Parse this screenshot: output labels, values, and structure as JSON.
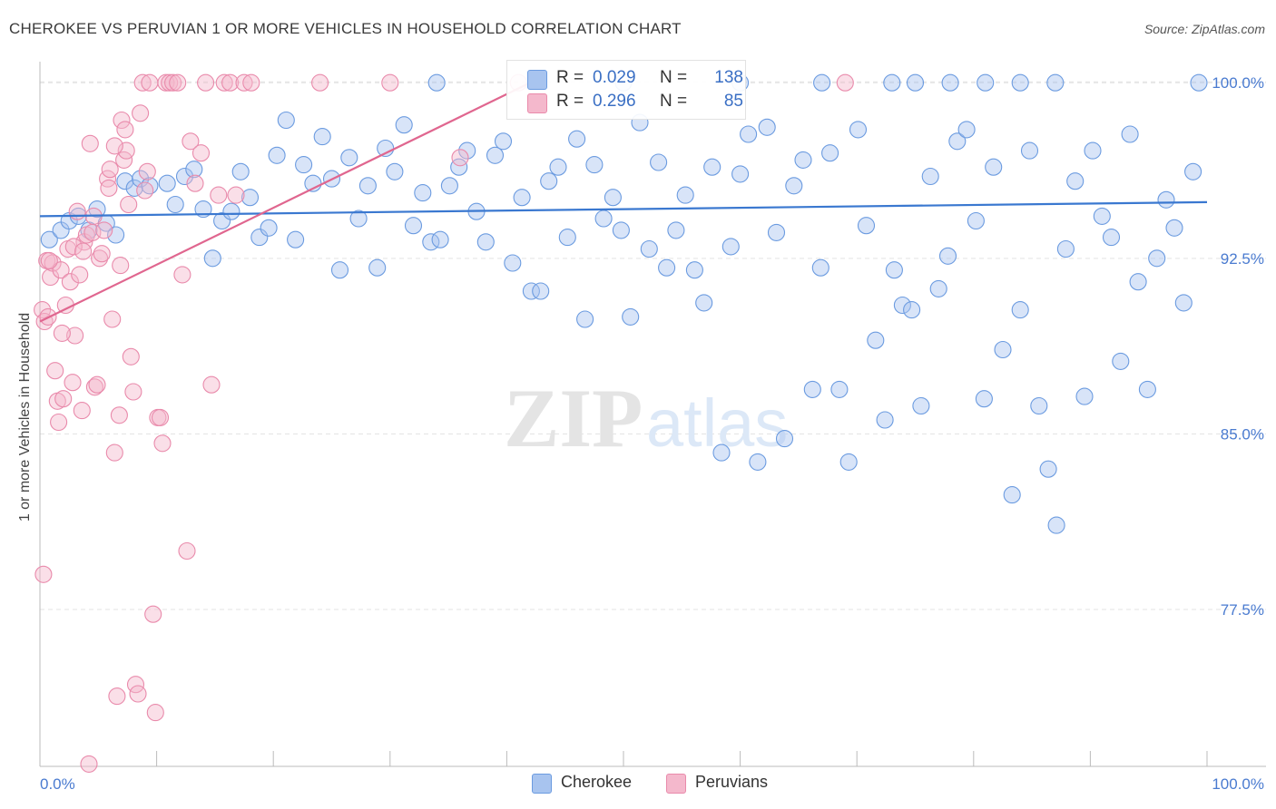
{
  "header": {
    "title": "CHEROKEE VS PERUVIAN 1 OR MORE VEHICLES IN HOUSEHOLD CORRELATION CHART",
    "source": "Source: ZipAtlas.com"
  },
  "watermark": {
    "zip": "ZIP",
    "atlas": "atlas"
  },
  "stats": [
    {
      "r_label": "R =",
      "r_value": "0.029",
      "n_label": "N =",
      "n_value": "138",
      "color": "#a8c4ef"
    },
    {
      "r_label": "R =",
      "r_value": "0.296",
      "n_label": "N =",
      "n_value": "85",
      "color": "#f4b8cc"
    }
  ],
  "legend": [
    {
      "label": "Cherokee",
      "color": "#a8c4ef"
    },
    {
      "label": "Peruvians",
      "color": "#f4b8cc"
    }
  ],
  "chart_data": {
    "type": "scatter",
    "title": "CHEROKEE VS PERUVIAN 1 OR MORE VEHICLES IN HOUSEHOLD CORRELATION CHART",
    "xlabel": "",
    "ylabel": "1 or more Vehicles in Household",
    "xlim": [
      0,
      100
    ],
    "ylim": [
      70.8,
      100.9
    ],
    "x_tick_labels": [
      "0.0%",
      "100.0%"
    ],
    "y_ticks": [
      100.0,
      92.5,
      85.0,
      77.5
    ],
    "y_tick_labels": [
      "100.0%",
      "92.5%",
      "85.0%",
      "77.5%"
    ],
    "grid": true,
    "series": [
      {
        "name": "Cherokee",
        "color": "#6b9be0",
        "fill": "#a8c4ef",
        "trend": {
          "x": [
            0,
            100
          ],
          "y": [
            94.3,
            94.9
          ],
          "color": "#3a78d0"
        },
        "points": [
          [
            0.8,
            93.3
          ],
          [
            1.8,
            93.7
          ],
          [
            2.5,
            94.1
          ],
          [
            3.3,
            94.3
          ],
          [
            4.2,
            93.7
          ],
          [
            4.9,
            94.6
          ],
          [
            5.7,
            94.0
          ],
          [
            6.5,
            93.5
          ],
          [
            7.3,
            95.8
          ],
          [
            8.1,
            95.5
          ],
          [
            8.6,
            95.9
          ],
          [
            9.4,
            95.6
          ],
          [
            10.9,
            95.7
          ],
          [
            11.6,
            94.8
          ],
          [
            12.4,
            96.0
          ],
          [
            13.2,
            96.3
          ],
          [
            14.0,
            94.6
          ],
          [
            14.8,
            92.5
          ],
          [
            15.6,
            94.1
          ],
          [
            16.4,
            94.5
          ],
          [
            17.2,
            96.2
          ],
          [
            18.0,
            95.1
          ],
          [
            18.8,
            93.4
          ],
          [
            19.6,
            93.8
          ],
          [
            20.3,
            96.9
          ],
          [
            21.1,
            98.4
          ],
          [
            21.9,
            93.3
          ],
          [
            22.6,
            96.5
          ],
          [
            23.4,
            95.7
          ],
          [
            24.2,
            97.7
          ],
          [
            25.0,
            95.9
          ],
          [
            25.7,
            92.0
          ],
          [
            26.5,
            96.8
          ],
          [
            27.3,
            94.2
          ],
          [
            28.1,
            95.6
          ],
          [
            28.9,
            92.1
          ],
          [
            29.6,
            97.2
          ],
          [
            30.4,
            96.2
          ],
          [
            31.2,
            98.2
          ],
          [
            32.0,
            93.9
          ],
          [
            32.8,
            95.3
          ],
          [
            33.5,
            93.2
          ],
          [
            34.3,
            93.3
          ],
          [
            35.1,
            95.6
          ],
          [
            35.9,
            96.4
          ],
          [
            36.6,
            97.1
          ],
          [
            37.4,
            94.5
          ],
          [
            38.2,
            93.2
          ],
          [
            39.0,
            96.9
          ],
          [
            39.7,
            97.5
          ],
          [
            40.5,
            92.3
          ],
          [
            41.3,
            95.1
          ],
          [
            42.1,
            91.1
          ],
          [
            42.9,
            91.1
          ],
          [
            43.6,
            95.8
          ],
          [
            44.4,
            96.4
          ],
          [
            45.2,
            93.4
          ],
          [
            46.0,
            97.6
          ],
          [
            46.7,
            89.9
          ],
          [
            47.5,
            96.5
          ],
          [
            48.3,
            94.2
          ],
          [
            49.1,
            95.1
          ],
          [
            49.8,
            93.7
          ],
          [
            50.6,
            90.0
          ],
          [
            51.4,
            98.3
          ],
          [
            52.2,
            92.9
          ],
          [
            53.0,
            96.6
          ],
          [
            53.7,
            92.1
          ],
          [
            54.5,
            93.7
          ],
          [
            55.3,
            95.2
          ],
          [
            56.1,
            92.0
          ],
          [
            56.9,
            90.6
          ],
          [
            57.6,
            96.4
          ],
          [
            58.4,
            84.2
          ],
          [
            59.2,
            93.0
          ],
          [
            60.0,
            96.1
          ],
          [
            60.7,
            97.8
          ],
          [
            61.5,
            83.8
          ],
          [
            62.3,
            98.1
          ],
          [
            63.1,
            93.6
          ],
          [
            63.8,
            84.8
          ],
          [
            64.6,
            95.6
          ],
          [
            65.4,
            96.7
          ],
          [
            66.2,
            86.9
          ],
          [
            66.9,
            92.1
          ],
          [
            67.7,
            97.0
          ],
          [
            68.5,
            86.9
          ],
          [
            69.3,
            83.8
          ],
          [
            70.1,
            98.0
          ],
          [
            70.8,
            93.9
          ],
          [
            71.6,
            89.0
          ],
          [
            72.4,
            85.6
          ],
          [
            73.2,
            92.0
          ],
          [
            73.9,
            90.5
          ],
          [
            74.7,
            90.3
          ],
          [
            75.5,
            86.2
          ],
          [
            76.3,
            96.0
          ],
          [
            77.0,
            91.2
          ],
          [
            77.8,
            92.6
          ],
          [
            78.6,
            97.5
          ],
          [
            79.4,
            98.0
          ],
          [
            80.2,
            94.1
          ],
          [
            80.9,
            86.5
          ],
          [
            81.7,
            96.4
          ],
          [
            82.5,
            88.6
          ],
          [
            83.3,
            82.4
          ],
          [
            84.0,
            90.3
          ],
          [
            84.8,
            97.1
          ],
          [
            85.6,
            86.2
          ],
          [
            86.4,
            83.5
          ],
          [
            87.1,
            81.1
          ],
          [
            87.9,
            92.9
          ],
          [
            88.7,
            95.8
          ],
          [
            89.5,
            86.6
          ],
          [
            90.2,
            97.1
          ],
          [
            91.0,
            94.3
          ],
          [
            91.8,
            93.4
          ],
          [
            92.6,
            88.1
          ],
          [
            93.4,
            97.8
          ],
          [
            94.1,
            91.5
          ],
          [
            94.9,
            86.9
          ],
          [
            95.7,
            92.5
          ],
          [
            96.5,
            95.0
          ],
          [
            97.2,
            93.8
          ],
          [
            98.0,
            90.6
          ],
          [
            98.8,
            96.2
          ],
          [
            99.3,
            100.0
          ],
          [
            34.0,
            100.0
          ],
          [
            50.0,
            100.0
          ],
          [
            60.0,
            100.0
          ],
          [
            67.0,
            100.0
          ],
          [
            73.0,
            100.0
          ],
          [
            75.0,
            100.0
          ],
          [
            78.0,
            100.0
          ],
          [
            81.0,
            100.0
          ],
          [
            84.0,
            100.0
          ],
          [
            87.0,
            100.0
          ]
        ]
      },
      {
        "name": "Peruvians",
        "color": "#e98aab",
        "fill": "#f4b8cc",
        "trend": {
          "x": [
            0,
            42
          ],
          "y": [
            89.8,
            100.0
          ],
          "color": "#e0668f"
        },
        "points": [
          [
            0.2,
            90.3
          ],
          [
            0.4,
            89.8
          ],
          [
            0.6,
            92.4
          ],
          [
            0.7,
            90.0
          ],
          [
            0.9,
            91.7
          ],
          [
            1.1,
            92.3
          ],
          [
            1.3,
            87.7
          ],
          [
            1.5,
            86.4
          ],
          [
            1.8,
            92.0
          ],
          [
            2.0,
            86.5
          ],
          [
            2.2,
            90.5
          ],
          [
            2.4,
            92.9
          ],
          [
            2.6,
            91.5
          ],
          [
            2.8,
            87.2
          ],
          [
            3.0,
            89.2
          ],
          [
            3.2,
            94.5
          ],
          [
            3.4,
            91.8
          ],
          [
            3.6,
            86.0
          ],
          [
            3.8,
            93.2
          ],
          [
            4.0,
            93.5
          ],
          [
            4.3,
            97.4
          ],
          [
            4.5,
            93.6
          ],
          [
            4.7,
            87.0
          ],
          [
            4.9,
            87.1
          ],
          [
            5.1,
            92.5
          ],
          [
            5.3,
            92.7
          ],
          [
            5.5,
            93.7
          ],
          [
            5.8,
            95.9
          ],
          [
            6.0,
            96.3
          ],
          [
            6.2,
            89.9
          ],
          [
            6.4,
            84.2
          ],
          [
            6.6,
            73.8
          ],
          [
            6.8,
            85.8
          ],
          [
            7.0,
            98.4
          ],
          [
            7.2,
            96.7
          ],
          [
            7.4,
            97.1
          ],
          [
            7.6,
            94.8
          ],
          [
            7.8,
            88.3
          ],
          [
            8.0,
            86.8
          ],
          [
            8.2,
            74.3
          ],
          [
            8.4,
            73.9
          ],
          [
            8.6,
            98.7
          ],
          [
            8.8,
            100.0
          ],
          [
            9.0,
            95.4
          ],
          [
            9.2,
            96.2
          ],
          [
            9.4,
            100.0
          ],
          [
            9.7,
            77.3
          ],
          [
            9.9,
            73.1
          ],
          [
            10.1,
            85.7
          ],
          [
            10.3,
            85.7
          ],
          [
            10.5,
            84.6
          ],
          [
            10.8,
            100.0
          ],
          [
            11.1,
            100.0
          ],
          [
            11.4,
            100.0
          ],
          [
            11.8,
            100.0
          ],
          [
            12.2,
            91.8
          ],
          [
            12.6,
            80.0
          ],
          [
            12.9,
            97.5
          ],
          [
            13.3,
            95.7
          ],
          [
            13.8,
            97.0
          ],
          [
            14.2,
            100.0
          ],
          [
            14.7,
            87.1
          ],
          [
            15.3,
            95.2
          ],
          [
            15.8,
            100.0
          ],
          [
            16.3,
            100.0
          ],
          [
            16.8,
            95.2
          ],
          [
            17.5,
            100.0
          ],
          [
            18.1,
            100.0
          ],
          [
            0.3,
            79.0
          ],
          [
            4.2,
            70.9
          ],
          [
            2.9,
            93.0
          ],
          [
            1.9,
            89.3
          ],
          [
            6.9,
            92.2
          ],
          [
            5.9,
            95.5
          ],
          [
            3.7,
            92.8
          ],
          [
            0.8,
            92.4
          ],
          [
            1.6,
            85.5
          ],
          [
            6.4,
            97.3
          ],
          [
            7.3,
            98.0
          ],
          [
            4.6,
            94.3
          ],
          [
            36.0,
            96.8
          ],
          [
            24.0,
            100.0
          ],
          [
            30.0,
            100.0
          ],
          [
            41.0,
            100.0
          ],
          [
            69.0,
            100.0
          ]
        ]
      }
    ]
  }
}
